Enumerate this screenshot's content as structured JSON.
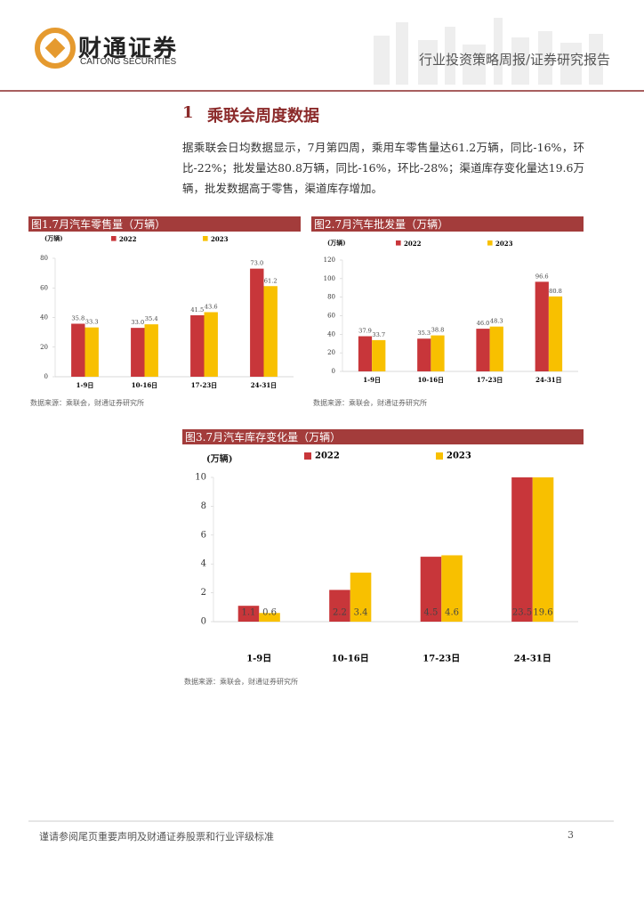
{
  "header": {
    "logo_cn": "财通证券",
    "logo_en": "CAITONG SECURITIES",
    "report_type": "行业投资策略周报/证券研究报告"
  },
  "section": {
    "number": "1",
    "title": "乘联会周度数据"
  },
  "paragraph": "据乘联会日均数据显示，7月第四周，乘用车零售量达61.2万辆，同比-16%，环比-22%；批发量达80.8万辆，同比-16%，环比-28%；渠道库存变化量达19.6万辆，批发数据高于零售，渠道库存增加。",
  "chart_data": [
    {
      "type": "bar",
      "title": "图1.7月汽车零售量（万辆）",
      "unit": "(万辆)",
      "categories": [
        "1-9日",
        "10-16日",
        "17-23日",
        "24-31日"
      ],
      "series": [
        {
          "name": "2022",
          "color": "#c8363a",
          "values": [
            35.8,
            33.0,
            41.5,
            73.0
          ],
          "value_labels": [
            "35.8",
            "33.0",
            "41.5",
            "73.0"
          ]
        },
        {
          "name": "2023",
          "color": "#f8c000",
          "values": [
            33.3,
            35.4,
            43.6,
            61.2
          ],
          "value_labels": [
            "33.3",
            "35.4",
            "43.6",
            "61.2"
          ]
        }
      ],
      "ylim": [
        0,
        80
      ],
      "yticks": [
        0,
        20,
        40,
        60,
        80
      ],
      "source": "数据来源：乘联会，财通证券研究所"
    },
    {
      "type": "bar",
      "title": "图2.7月汽车批发量（万辆）",
      "unit": "(万辆)",
      "categories": [
        "1-9日",
        "10-16日",
        "17-23日",
        "24-31日"
      ],
      "series": [
        {
          "name": "2022",
          "color": "#c8363a",
          "values": [
            37.9,
            35.3,
            46.0,
            96.6
          ],
          "value_labels": [
            "37.9",
            "35.3",
            "46.0",
            "96.6"
          ]
        },
        {
          "name": "2023",
          "color": "#f8c000",
          "values": [
            33.7,
            38.8,
            48.3,
            80.8
          ],
          "value_labels": [
            "33.7",
            "38.8",
            "48.3",
            "80.8"
          ]
        }
      ],
      "ylim": [
        0,
        120
      ],
      "yticks": [
        0,
        20,
        40,
        60,
        80,
        100,
        120
      ],
      "source": "数据来源：乘联会，财通证券研究所"
    },
    {
      "type": "bar",
      "title": "图3.7月汽车库存变化量（万辆）",
      "unit": "(万辆)",
      "categories": [
        "1-9日",
        "10-16日",
        "17-23日",
        "24-31日"
      ],
      "series": [
        {
          "name": "2022",
          "color": "#c8363a",
          "values": [
            1.1,
            2.2,
            4.5,
            23.5
          ],
          "value_labels": [
            "1.1",
            "2.2",
            "4.5",
            "23.5"
          ]
        },
        {
          "name": "2023",
          "color": "#f8c000",
          "values": [
            0.6,
            3.4,
            4.6,
            19.6
          ],
          "value_labels": [
            "0.6",
            "3.4",
            "4.6",
            "19.6"
          ]
        }
      ],
      "ylim": [
        0,
        10
      ],
      "yticks": [
        0,
        2,
        4,
        6,
        8,
        10
      ],
      "source": "数据来源：乘联会，财通证券研究所"
    }
  ],
  "footer": {
    "disclaimer": "谨请参阅尾页重要声明及财通证券股票和行业评级标准",
    "page": "3"
  }
}
